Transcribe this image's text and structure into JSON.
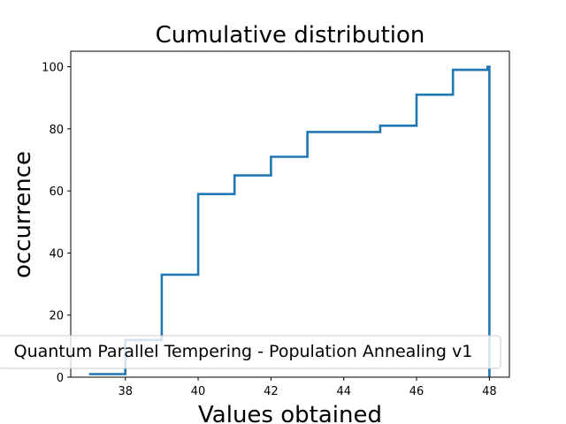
{
  "chart_data": {
    "type": "line",
    "drawstyle": "steps-post",
    "title": "Cumulative distribution",
    "xlabel": "Values obtained",
    "ylabel": "occurrence",
    "xlim": [
      36.5,
      48.55
    ],
    "ylim": [
      0,
      105
    ],
    "xticks": [
      38,
      40,
      42,
      44,
      46,
      48
    ],
    "yticks": [
      0,
      20,
      40,
      60,
      80,
      100
    ],
    "grid": false,
    "legend": {
      "placement": "lower-center"
    },
    "series": [
      {
        "name": "Quantum Parallel Tempering - Population Annealing v1",
        "color": "#1f77b4",
        "x": [
          37,
          38,
          39,
          40,
          41,
          42,
          43,
          44,
          45,
          46,
          47,
          47.95,
          48,
          48
        ],
        "y": [
          1,
          12,
          33,
          59,
          65,
          71,
          79,
          79,
          81,
          91,
          99,
          100,
          100,
          0
        ]
      }
    ]
  }
}
